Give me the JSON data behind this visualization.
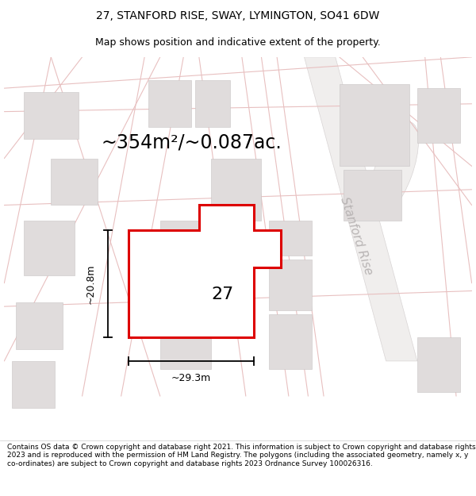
{
  "title": "27, STANFORD RISE, SWAY, LYMINGTON, SO41 6DW",
  "subtitle": "Map shows position and indicative extent of the property.",
  "area_text": "~354m²/~0.087ac.",
  "dim_width": "~29.3m",
  "dim_height": "~20.8m",
  "plot_number": "27",
  "road_label": "Stanford Rise",
  "footer": "Contains OS data © Crown copyright and database right 2021. This information is subject to Crown copyright and database rights 2023 and is reproduced with the permission of HM Land Registry. The polygons (including the associated geometry, namely x, y co-ordinates) are subject to Crown copyright and database rights 2023 Ordnance Survey 100026316.",
  "map_bg": "#f7f5f5",
  "building_color": "#e0dcdc",
  "building_edge": "#c8c4c4",
  "road_line_color": "#e8c0c0",
  "plot_stroke": "#dd0000",
  "title_fontsize": 10,
  "subtitle_fontsize": 9,
  "area_fontsize": 17,
  "plot_num_fontsize": 16,
  "dim_fontsize": 9,
  "road_label_fontsize": 11,
  "footer_fontsize": 6.5
}
